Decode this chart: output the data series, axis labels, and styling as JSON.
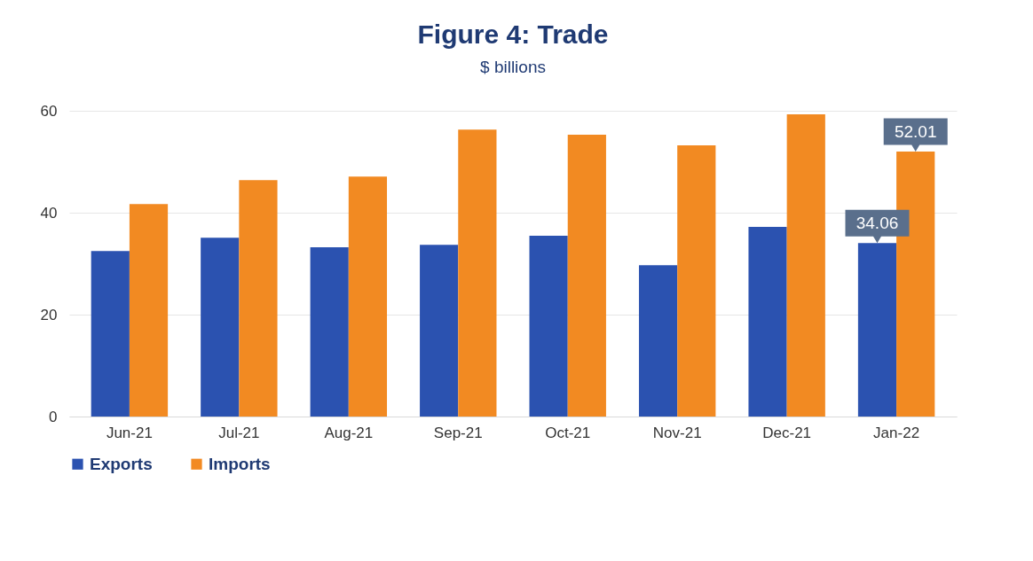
{
  "chart_data": {
    "type": "bar",
    "title": "Figure 4: Trade",
    "subtitle": "$ billions",
    "categories": [
      "Jun-21",
      "Jul-21",
      "Aug-21",
      "Sep-21",
      "Oct-21",
      "Nov-21",
      "Dec-21",
      "Jan-22"
    ],
    "series": [
      {
        "name": "Exports",
        "color": "#2b52b0",
        "values": [
          32.5,
          35.1,
          33.2,
          33.7,
          35.5,
          29.7,
          37.2,
          34.06
        ],
        "value_labels": [
          null,
          null,
          null,
          null,
          null,
          null,
          null,
          "34.06"
        ]
      },
      {
        "name": "Imports",
        "color": "#f28a22",
        "values": [
          41.7,
          46.4,
          47.1,
          56.3,
          55.3,
          53.2,
          59.3,
          52.01
        ],
        "value_labels": [
          null,
          null,
          null,
          null,
          null,
          null,
          null,
          "52.01"
        ]
      }
    ],
    "ylim": [
      0,
      60
    ],
    "yticks": [
      0,
      20,
      40,
      60
    ],
    "grid": "y",
    "legend": "bottom"
  }
}
